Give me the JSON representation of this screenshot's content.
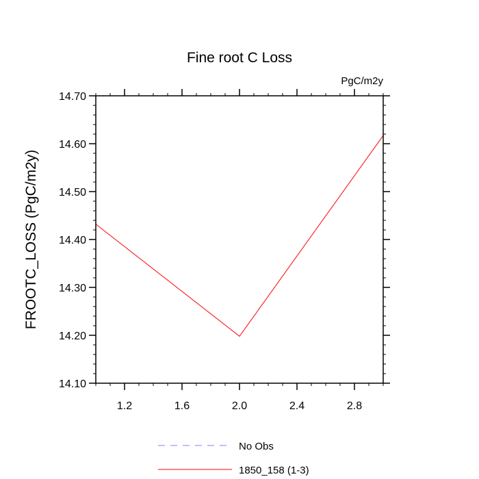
{
  "chart_data": {
    "type": "line",
    "title": "Fine root C Loss",
    "units_label": "PgC/m2y",
    "ylabel": "FROOTC_LOSS  (PgC/m2y)",
    "xlabel": "",
    "xlim": [
      1.0,
      3.0
    ],
    "ylim": [
      14.1,
      14.7
    ],
    "xticks": [
      1.2,
      1.6,
      2.0,
      2.4,
      2.8
    ],
    "xtick_labels": [
      "1.2",
      "1.6",
      "2.0",
      "2.4",
      "2.8"
    ],
    "yticks": [
      14.1,
      14.2,
      14.3,
      14.4,
      14.5,
      14.6,
      14.7
    ],
    "ytick_labels": [
      "14.10",
      "14.20",
      "14.30",
      "14.40",
      "14.50",
      "14.60",
      "14.70"
    ],
    "grid": false,
    "legend_position": "bottom-center",
    "series": [
      {
        "name": "No Obs",
        "color": "#7f7fff",
        "dash": "dashed",
        "x": [],
        "y": []
      },
      {
        "name": "1850_158 (1-3)",
        "color": "#ff0000",
        "dash": "solid",
        "x": [
          1.0,
          2.0,
          3.0
        ],
        "y": [
          14.432,
          14.198,
          14.617
        ]
      }
    ]
  }
}
